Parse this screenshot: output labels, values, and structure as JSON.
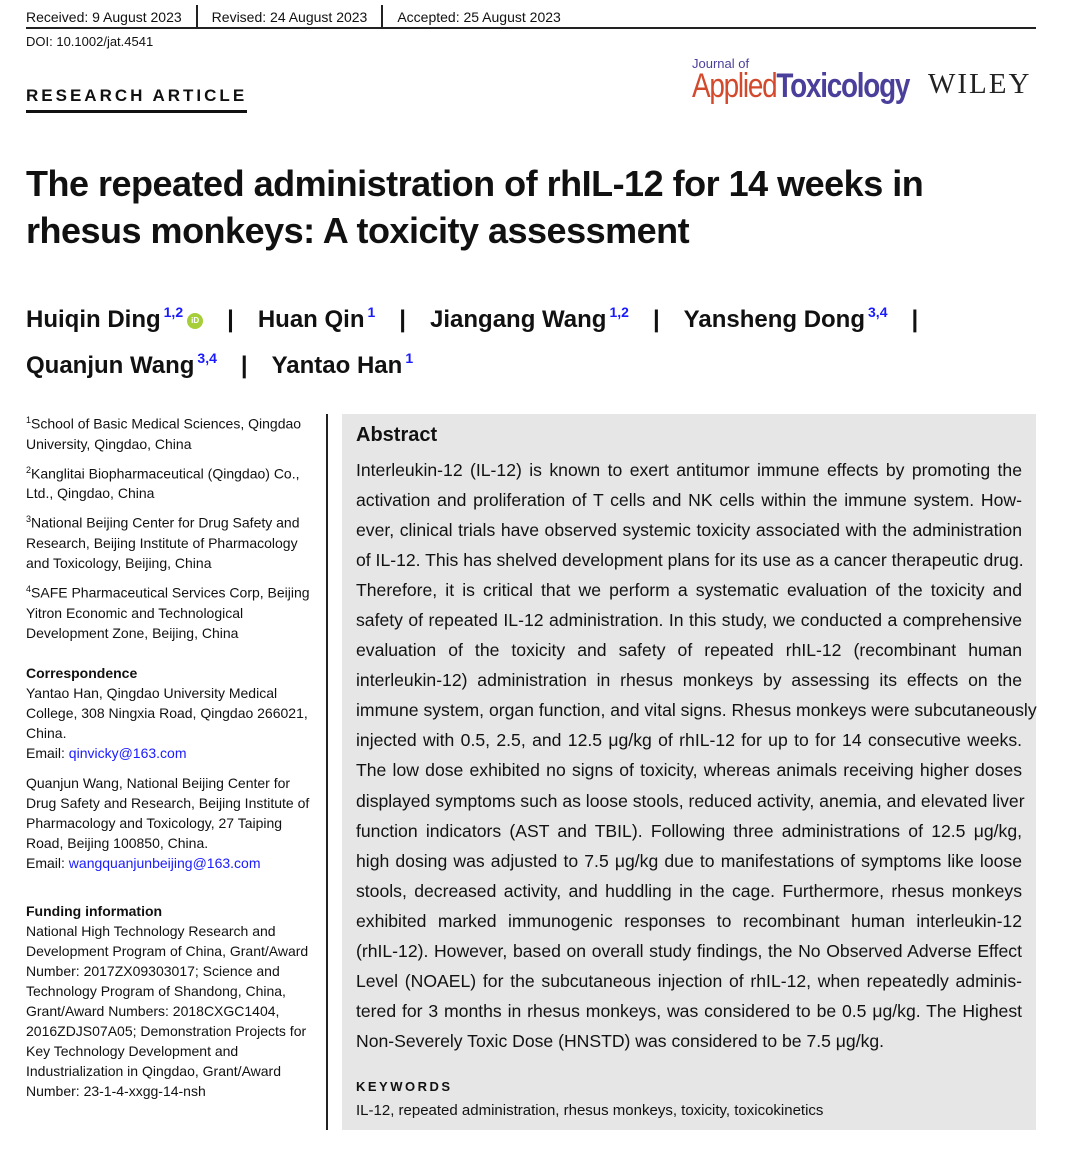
{
  "header": {
    "received": "Received: 9 August 2023",
    "revised": "Revised: 24 August 2023",
    "accepted": "Accepted: 25 August 2023",
    "doi": "DOI: 10.1002/jat.4541",
    "article_type": "RESEARCH ARTICLE",
    "journal_logo": {
      "journal_of": "Journal of",
      "applied": "Applied",
      "toxicology": "Toxicology"
    },
    "publisher_logo": "WILEY"
  },
  "title": "The repeated administration of rhIL-12 for 14 weeks in rhesus monkeys: A toxicity assessment",
  "authors": [
    {
      "name": "Huiqin Ding",
      "aff": "1,2",
      "orcid": true
    },
    {
      "name": "Huan Qin",
      "aff": "1"
    },
    {
      "name": "Jiangang Wang",
      "aff": "1,2"
    },
    {
      "name": "Yansheng Dong",
      "aff": "3,4"
    },
    {
      "name": "Quanjun Wang",
      "aff": "3,4"
    },
    {
      "name": "Yantao Han",
      "aff": "1"
    }
  ],
  "affiliations": [
    {
      "n": "1",
      "lines": [
        "School of Basic Medical Sciences, Qingdao",
        "University, Qingdao, China"
      ]
    },
    {
      "n": "2",
      "lines": [
        "Kanglitai Biopharmaceutical (Qingdao) Co.,",
        "Ltd., Qingdao, China"
      ]
    },
    {
      "n": "3",
      "lines": [
        "National Beijing Center for Drug Safety and",
        "Research, Beijing Institute of Pharmacology",
        "and Toxicology, Beijing, China"
      ]
    },
    {
      "n": "4",
      "lines": [
        "SAFE Pharmaceutical Services Corp, Beijing",
        "Yitron Economic and Technological",
        "Development Zone, Beijing, China"
      ]
    }
  ],
  "correspondence": {
    "heading": "Correspondence",
    "entries": [
      {
        "lines": [
          "Yantao Han, Qingdao University Medical",
          "College, 308 Ningxia Road, Qingdao 266021,",
          "China."
        ],
        "email_label": "Email: ",
        "email": "qinvicky@163.com"
      },
      {
        "lines": [
          "Quanjun Wang, National Beijing Center for",
          "Drug Safety and Research, Beijing Institute of",
          "Pharmacology and Toxicology, 27 Taiping",
          "Road, Beijing 100850, China."
        ],
        "email_label": "Email: ",
        "email": "wangquanjunbeijing@163.com"
      }
    ]
  },
  "funding": {
    "heading": "Funding information",
    "lines": [
      "National High Technology Research and",
      "Development Program of China, Grant/Award",
      "Number: 2017ZX09303017; Science and",
      "Technology Program of Shandong, China,",
      "Grant/Award Numbers: 2018CXGC1404,",
      "2016ZDJS07A05; Demonstration Projects for",
      "Key Technology Development and",
      "Industrialization in Qingdao, Grant/Award",
      "Number: 23-1-4-xxgg-14-nsh"
    ]
  },
  "abstract": {
    "heading": "Abstract",
    "lines": [
      "Interleukin-12 (IL-12) is known to exert antitumor immune effects by promoting the",
      "activation and proliferation of T cells and NK cells within the immune system. How-",
      "ever, clinical trials have observed systemic toxicity associated with the administration",
      "of IL-12. This has shelved development plans for its use as a cancer therapeutic drug.",
      "Therefore, it is critical that we perform a systematic evaluation of the toxicity and",
      "safety of repeated IL-12 administration. In this study, we conducted a comprehensive",
      "evaluation of the toxicity and safety of repeated rhIL-12 (recombinant human",
      "interleukin-12) administration in rhesus monkeys by assessing its effects on the",
      "immune system, organ function, and vital signs. Rhesus monkeys were subcutaneously",
      "injected with 0.5, 2.5, and 12.5 μg/kg of rhIL-12 for up to for 14 consecutive weeks.",
      "The low dose exhibited no signs of toxicity, whereas animals receiving higher doses",
      "displayed symptoms such as loose stools, reduced activity, anemia, and elevated liver",
      "function indicators (AST and TBIL). Following three administrations of 12.5 μg/kg,",
      "high dosing was adjusted to 7.5 μg/kg due to manifestations of symptoms like loose",
      "stools, decreased activity, and huddling in the cage. Furthermore, rhesus monkeys",
      "exhibited marked immunogenic responses to recombinant human interleukin-12",
      "(rhIL-12). However, based on overall study findings, the No Observed Adverse Effect",
      "Level (NOAEL) for the subcutaneous injection of rhIL-12, when repeatedly adminis-",
      "tered for 3 months in rhesus monkeys, was considered to be 0.5 μg/kg. The Highest",
      "Non-Severely Toxic Dose (HNSTD) was considered to be 7.5 μg/kg."
    ],
    "keywords_heading": "KEYWORDS",
    "keywords": "IL-12, repeated administration, rhesus monkeys, toxicity, toxicokinetics"
  },
  "colors": {
    "abstract_bg": "#e6e6e6",
    "link": "#1a1aff",
    "journal_orange": "#d3492c",
    "journal_purple": "#4a3f9a",
    "orcid": "#a6ce39"
  }
}
